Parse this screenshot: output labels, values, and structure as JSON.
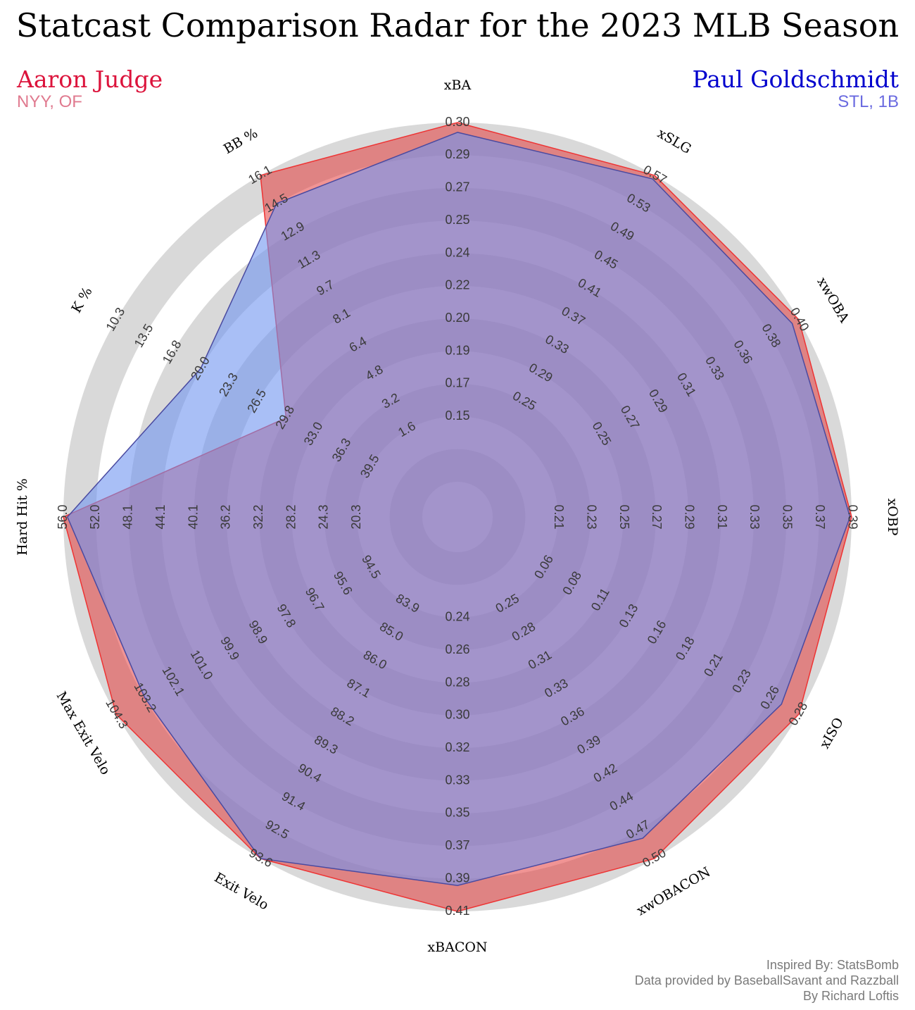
{
  "header": {
    "title": "Statcast Comparison Radar for the 2023 MLB Season"
  },
  "players": [
    {
      "name": "Aaron Judge",
      "team": "NYY, OF",
      "color": "#dc143c",
      "team_color": "#e07a8f",
      "fill": "#e33c3c",
      "stroke": "#ee3333"
    },
    {
      "name": "Paul Goldschmidt",
      "team": "STL, 1B",
      "color": "#0000cd",
      "team_color": "#6a6ae0",
      "fill": "#6f95f0",
      "stroke": "#4a4aa0"
    }
  ],
  "credits": [
    "Inspired By: StatsBomb",
    "Data provided by BaseballSavant and Razzball",
    "By Richard Loftis"
  ],
  "chart_data": {
    "type": "radar",
    "title": "Statcast Comparison Radar for the 2023 MLB Season",
    "axes": [
      {
        "name": "xBA",
        "ticks": [
          "0.15",
          "0.17",
          "0.19",
          "0.20",
          "0.22",
          "0.24",
          "0.25",
          "0.27",
          "0.29",
          "0.30"
        ]
      },
      {
        "name": "xSLG",
        "ticks": [
          "0.25",
          "0.29",
          "0.33",
          "0.37",
          "0.41",
          "0.45",
          "0.49",
          "0.53",
          "0.57"
        ]
      },
      {
        "name": "xwOBA",
        "ticks": [
          "0.25",
          "0.27",
          "0.29",
          "0.31",
          "0.33",
          "0.36",
          "0.38",
          "0.40"
        ]
      },
      {
        "name": "xOBP",
        "ticks": [
          "0.21",
          "0.23",
          "0.25",
          "0.27",
          "0.29",
          "0.31",
          "0.33",
          "0.35",
          "0.37",
          "0.39"
        ]
      },
      {
        "name": "xISO",
        "ticks": [
          "0.06",
          "0.08",
          "0.11",
          "0.13",
          "0.16",
          "0.18",
          "0.21",
          "0.23",
          "0.26",
          "0.28"
        ]
      },
      {
        "name": "xwOBACON",
        "ticks": [
          "0.25",
          "0.28",
          "0.31",
          "0.33",
          "0.36",
          "0.39",
          "0.42",
          "0.44",
          "0.47",
          "0.50"
        ]
      },
      {
        "name": "xBACON",
        "ticks": [
          "0.24",
          "0.26",
          "0.28",
          "0.30",
          "0.32",
          "0.33",
          "0.35",
          "0.37",
          "0.39",
          "0.41"
        ]
      },
      {
        "name": "Exit Velo",
        "ticks": [
          "83.9",
          "85.0",
          "86.0",
          "87.1",
          "88.2",
          "89.3",
          "90.4",
          "91.4",
          "92.5",
          "93.6"
        ]
      },
      {
        "name": "Max Exit Velo",
        "ticks": [
          "94.5",
          "95.6",
          "96.7",
          "97.8",
          "98.9",
          "99.9",
          "101.0",
          "102.1",
          "103.2",
          "104.3"
        ]
      },
      {
        "name": "Hard Hit %",
        "ticks": [
          "20.3",
          "24.3",
          "28.2",
          "32.2",
          "36.2",
          "40.1",
          "44.1",
          "48.1",
          "52.0",
          "56.0"
        ]
      },
      {
        "name": "K %",
        "ticks": [
          "39.5",
          "36.3",
          "33.0",
          "29.8",
          "26.5",
          "23.3",
          "20.0",
          "16.8",
          "13.5",
          "10.3"
        ]
      },
      {
        "name": "BB %",
        "ticks": [
          "1.6",
          "3.2",
          "4.8",
          "6.4",
          "8.1",
          "9.7",
          "11.3",
          "12.9",
          "14.5",
          "16.1"
        ]
      }
    ],
    "series": [
      {
        "name": "Aaron Judge",
        "values": [
          0.3,
          0.57,
          0.4,
          0.39,
          0.28,
          0.5,
          0.41,
          93.6,
          104.3,
          56.0,
          29.8,
          16.1
        ]
      },
      {
        "name": "Paul Goldschmidt",
        "values": [
          0.295,
          0.565,
          0.395,
          0.389,
          0.265,
          0.48,
          0.395,
          93.6,
          103.2,
          55.5,
          20.0,
          14.5
        ]
      }
    ]
  }
}
